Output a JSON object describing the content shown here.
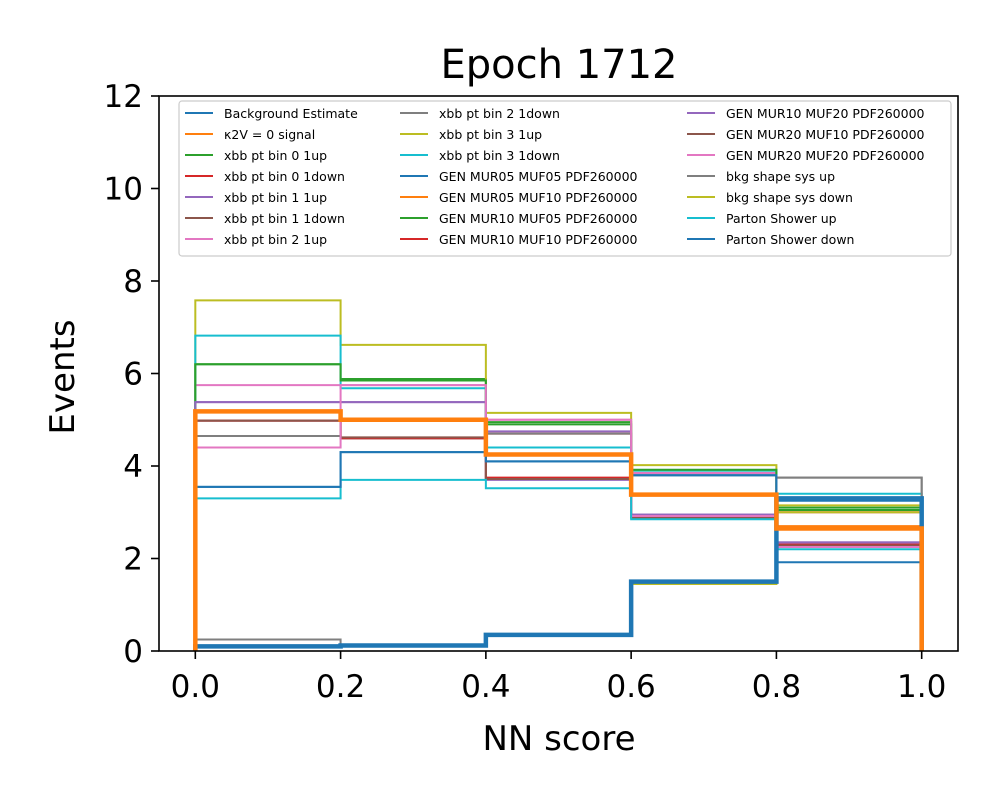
{
  "chart_data": {
    "type": "line",
    "title": "Epoch 1712",
    "xlabel": "NN score",
    "ylabel": "Events",
    "xlim": [
      -0.05,
      1.05
    ],
    "ylim": [
      0,
      12
    ],
    "xticks": [
      "0.0",
      "0.2",
      "0.4",
      "0.6",
      "0.8",
      "1.0"
    ],
    "yticks": [
      "0",
      "2",
      "4",
      "6",
      "8",
      "10",
      "12"
    ],
    "grid": false,
    "legend_position": "top",
    "bin_edges": [
      0.0,
      0.2,
      0.4,
      0.6,
      0.8,
      1.0
    ],
    "series": [
      {
        "name": "Background Estimate",
        "color": "#1f77b4",
        "values": [
          0.1,
          0.12,
          0.35,
          1.5,
          3.3
        ],
        "thick": true
      },
      {
        "name": "$\\kappa_{2V}=0$ signal",
        "label_display": "κ2V = 0 signal",
        "color": "#ff7f0e",
        "values": [
          5.18,
          5.0,
          4.25,
          3.38,
          2.65
        ],
        "thick": true
      },
      {
        "name": "xbb pt bin 0  1up",
        "color": "#2ca02c",
        "values": [
          6.2,
          5.88,
          4.95,
          3.9,
          3.1
        ]
      },
      {
        "name": "xbb pt bin 0  1down",
        "color": "#d62728",
        "values": [
          4.98,
          4.6,
          4.7,
          3.85,
          3.0
        ]
      },
      {
        "name": "xbb pt bin 1  1up",
        "color": "#9467bd",
        "values": [
          5.38,
          5.38,
          3.7,
          2.95,
          2.35
        ]
      },
      {
        "name": "xbb pt bin 1  1down",
        "color": "#8c564b",
        "values": [
          4.98,
          4.6,
          3.72,
          2.9,
          2.3
        ]
      },
      {
        "name": "xbb pt bin 2  1up",
        "color": "#e377c2",
        "values": [
          5.75,
          5.75,
          5.0,
          3.85,
          2.3
        ]
      },
      {
        "name": "xbb pt bin 2  1down",
        "color": "#7f7f7f",
        "values": [
          4.65,
          4.6,
          4.7,
          3.8,
          3.75
        ]
      },
      {
        "name": "xbb pt bin 3  1up",
        "color": "#bcbd22",
        "values": [
          7.58,
          6.62,
          5.15,
          4.02,
          3.0
        ]
      },
      {
        "name": "xbb pt bin 3  1down",
        "color": "#17becf",
        "values": [
          6.82,
          5.68,
          4.4,
          3.9,
          3.4
        ]
      },
      {
        "name": "GEN MUR05 MUF05 PDF260000",
        "color": "#1f77b4",
        "values": [
          3.55,
          4.3,
          4.1,
          3.8,
          3.25
        ]
      },
      {
        "name": "GEN MUR05 MUF10 PDF260000",
        "color": "#ff7f0e",
        "values": [
          5.2,
          5.02,
          4.25,
          3.4,
          2.7
        ]
      },
      {
        "name": "GEN MUR10 MUF05 PDF260000",
        "color": "#2ca02c",
        "values": [
          6.2,
          5.85,
          4.9,
          3.92,
          3.05
        ]
      },
      {
        "name": "GEN MUR10 MUF10 PDF260000",
        "color": "#d62728",
        "values": [
          4.98,
          4.6,
          3.75,
          2.9,
          2.3
        ]
      },
      {
        "name": "GEN MUR10 MUF20 PDF260000",
        "color": "#9467bd",
        "values": [
          5.38,
          5.38,
          4.75,
          2.95,
          2.35
        ]
      },
      {
        "name": "GEN MUR20 MUF10 PDF260000",
        "color": "#8c564b",
        "values": [
          4.98,
          4.62,
          3.72,
          2.88,
          2.28
        ]
      },
      {
        "name": "GEN MUR20 MUF20 PDF260000",
        "color": "#e377c2",
        "values": [
          4.4,
          5.75,
          5.0,
          2.92,
          2.25
        ]
      },
      {
        "name": "bkg shape sys up",
        "color": "#7f7f7f",
        "values": [
          0.25,
          0.12,
          0.35,
          1.5,
          3.75
        ]
      },
      {
        "name": "bkg shape sys down",
        "color": "#bcbd22",
        "values": [
          0.08,
          0.1,
          0.35,
          1.45,
          3.15
        ]
      },
      {
        "name": "Parton Shower up",
        "color": "#17becf",
        "values": [
          3.3,
          3.7,
          3.52,
          2.85,
          2.2
        ]
      },
      {
        "name": "Parton Shower down",
        "color": "#1f77b4",
        "values": [
          3.55,
          4.3,
          4.1,
          3.8,
          1.92
        ]
      }
    ]
  }
}
